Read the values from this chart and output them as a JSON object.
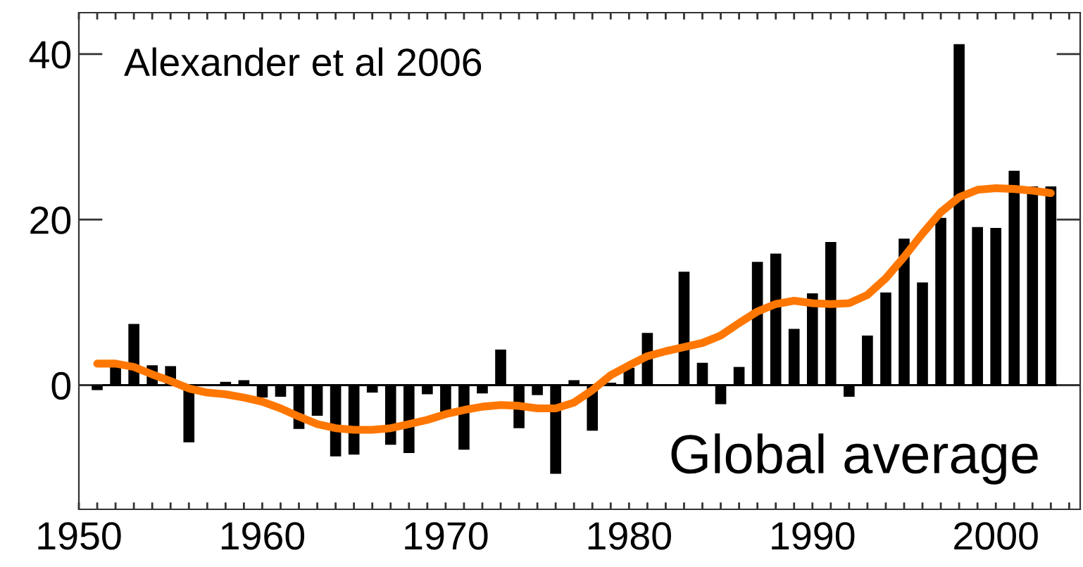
{
  "chart_data": {
    "type": "bar",
    "x": [
      1951,
      1952,
      1953,
      1954,
      1955,
      1956,
      1957,
      1958,
      1959,
      1960,
      1961,
      1962,
      1963,
      1964,
      1965,
      1966,
      1967,
      1968,
      1969,
      1970,
      1971,
      1972,
      1973,
      1974,
      1975,
      1976,
      1977,
      1978,
      1979,
      1980,
      1981,
      1982,
      1983,
      1984,
      1985,
      1986,
      1987,
      1988,
      1989,
      1990,
      1991,
      1992,
      1993,
      1994,
      1995,
      1996,
      1997,
      1998,
      1999,
      2000,
      2001,
      2002,
      2003
    ],
    "series": [
      {
        "color": "#000000",
        "values": [
          -0.6,
          2.4,
          7.4,
          2.4,
          2.3,
          -6.9,
          null,
          0.4,
          0.6,
          -1.5,
          -1.4,
          -5.3,
          -3.7,
          -8.6,
          -8.4,
          -0.9,
          -7.2,
          -8.2,
          -1.1,
          -3.5,
          -7.8,
          -1.0,
          4.3,
          -5.2,
          -1.2,
          -10.7,
          0.6,
          -5.5,
          0.3,
          2.1,
          6.3,
          0.1,
          13.7,
          2.7,
          -2.3,
          2.2,
          14.9,
          15.9,
          6.8,
          11.1,
          17.3,
          -1.4,
          6.0,
          11.2,
          17.7,
          12.4,
          20.2,
          41.2,
          19.1,
          19.0,
          25.9,
          24.0,
          24.0
        ]
      },
      {
        "type": "line",
        "color": "#ff7700",
        "values": [
          2.6,
          2.6,
          2.2,
          1.3,
          0.5,
          -0.4,
          -0.9,
          -1.1,
          -1.5,
          -2.0,
          -2.8,
          -3.8,
          -4.7,
          -5.2,
          -5.4,
          -5.4,
          -5.2,
          -4.7,
          -4.2,
          -3.5,
          -3.0,
          -2.6,
          -2.4,
          -2.5,
          -2.8,
          -2.8,
          -2.1,
          -0.6,
          1.2,
          2.4,
          3.5,
          4.1,
          4.6,
          5.1,
          6.0,
          7.5,
          8.9,
          9.8,
          10.2,
          9.9,
          9.8,
          9.9,
          10.9,
          12.9,
          15.5,
          18.3,
          20.9,
          22.7,
          23.6,
          23.8,
          23.7,
          23.5,
          23.2
        ]
      }
    ],
    "xlim": [
      1950,
      2004.6
    ],
    "xticks": [
      1950,
      {
        "value": 1951,
        "label": null
      },
      {
        "value": 1952,
        "label": null
      },
      {
        "value": 1953,
        "label": null
      },
      {
        "value": 1954,
        "label": null
      },
      {
        "value": 1955,
        "label": null
      },
      {
        "value": 1956,
        "label": null
      },
      {
        "value": 1957,
        "label": null
      },
      {
        "value": 1958,
        "label": null
      },
      {
        "value": 1959,
        "label": null
      },
      1960,
      {
        "value": 1961,
        "label": null
      },
      {
        "value": 1962,
        "label": null
      },
      {
        "value": 1963,
        "label": null
      },
      {
        "value": 1964,
        "label": null
      },
      {
        "value": 1965,
        "label": null
      },
      {
        "value": 1966,
        "label": null
      },
      {
        "value": 1967,
        "label": null
      },
      {
        "value": 1968,
        "label": null
      },
      {
        "value": 1969,
        "label": null
      },
      1970,
      {
        "value": 1971,
        "label": null
      },
      {
        "value": 1972,
        "label": null
      },
      {
        "value": 1973,
        "label": null
      },
      {
        "value": 1974,
        "label": null
      },
      {
        "value": 1975,
        "label": null
      },
      {
        "value": 1976,
        "label": null
      },
      {
        "value": 1977,
        "label": null
      },
      {
        "value": 1978,
        "label": null
      },
      {
        "value": 1979,
        "label": null
      },
      1980,
      {
        "value": 1981,
        "label": null
      },
      {
        "value": 1982,
        "label": null
      },
      {
        "value": 1983,
        "label": null
      },
      {
        "value": 1984,
        "label": null
      },
      {
        "value": 1985,
        "label": null
      },
      {
        "value": 1986,
        "label": null
      },
      {
        "value": 1987,
        "label": null
      },
      {
        "value": 1988,
        "label": null
      },
      {
        "value": 1989,
        "label": null
      },
      1990,
      {
        "value": 1991,
        "label": null
      },
      {
        "value": 1992,
        "label": null
      },
      {
        "value": 1993,
        "label": null
      },
      {
        "value": 1994,
        "label": null
      },
      {
        "value": 1995,
        "label": null
      },
      {
        "value": 1996,
        "label": null
      },
      {
        "value": 1997,
        "label": null
      },
      {
        "value": 1998,
        "label": null
      },
      {
        "value": 1999,
        "label": null
      },
      2000,
      {
        "value": 2001,
        "label": null
      },
      {
        "value": 2002,
        "label": null
      },
      {
        "value": 2003,
        "label": null
      },
      {
        "value": 2004,
        "label": null
      }
    ],
    "ylim": [
      -15,
      45
    ],
    "yticks": [
      0,
      20,
      40
    ],
    "ref_lines": [
      {
        "axis": "y",
        "value": 0,
        "color": "#000000"
      }
    ],
    "annotations": [
      "Alexander et al 2006",
      "Global average"
    ],
    "grid": false,
    "legend": false
  }
}
